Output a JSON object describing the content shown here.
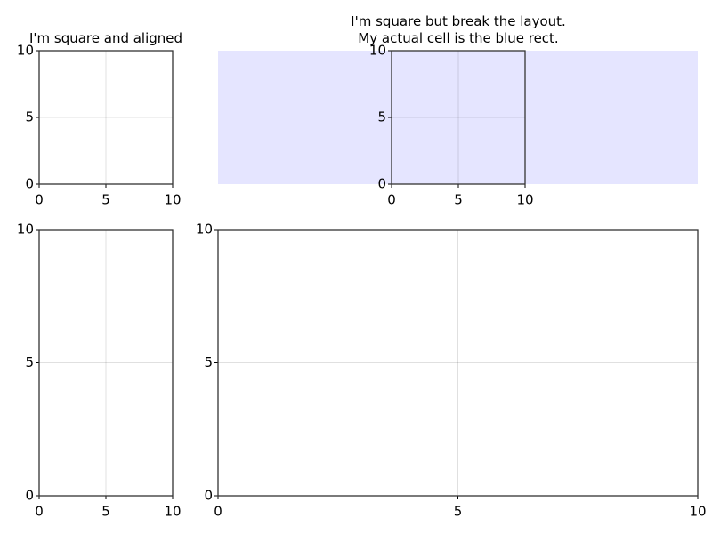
{
  "chart_data": [
    {
      "type": "line",
      "title": "I'm square and aligned",
      "xlim": [
        0,
        10
      ],
      "ylim": [
        0,
        10
      ],
      "xticks": [
        0,
        5,
        10
      ],
      "yticks": [
        0,
        5,
        10
      ],
      "grid": true
    },
    {
      "type": "line",
      "title": "I'm square but break the layout.\nMy actual cell is the blue rect.",
      "xlim": [
        0,
        10
      ],
      "ylim": [
        0,
        10
      ],
      "xticks": [
        0,
        5,
        10
      ],
      "yticks": [
        0,
        5,
        10
      ],
      "grid": true
    },
    {
      "type": "line",
      "xlim": [
        0,
        10
      ],
      "ylim": [
        0,
        10
      ],
      "xticks": [
        0,
        5,
        10
      ],
      "yticks": [
        0,
        5,
        10
      ],
      "grid": true
    },
    {
      "type": "line",
      "xlim": [
        0,
        10
      ],
      "ylim": [
        0,
        10
      ],
      "xticks": [
        0,
        5,
        10
      ],
      "yticks": [
        0,
        5,
        10
      ],
      "grid": true
    }
  ]
}
